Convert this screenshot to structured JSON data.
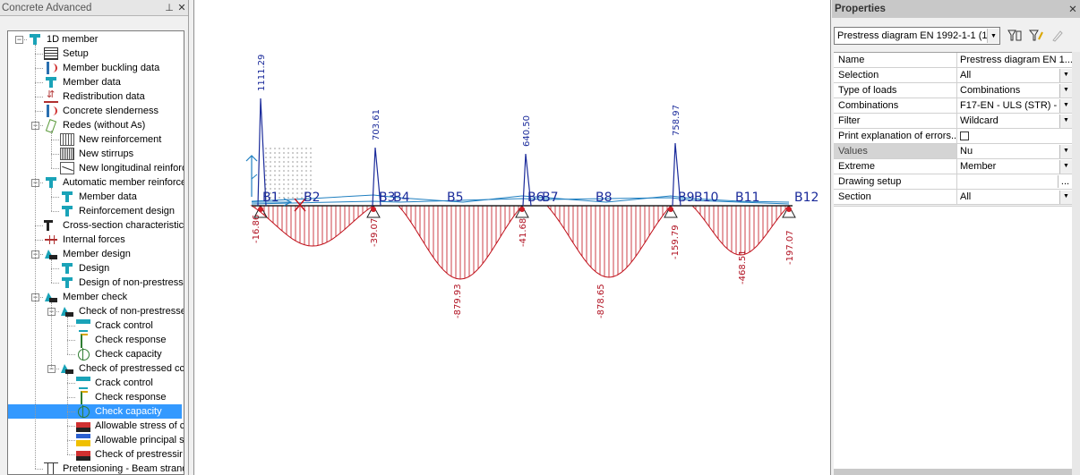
{
  "left_panel": {
    "title": "Concrete Advanced",
    "pin_icon": "pin-icon",
    "close_icon": "close-icon",
    "tree": [
      {
        "label": "1D member",
        "icon": "tee-icon",
        "level": 0,
        "expanded": true,
        "selected": false
      },
      {
        "label": "Setup",
        "icon": "setup-icon",
        "level": 1,
        "selected": false
      },
      {
        "label": "Member buckling data",
        "icon": "buckling-icon",
        "level": 1,
        "selected": false
      },
      {
        "label": "Member data",
        "icon": "tee-icon",
        "level": 1,
        "selected": false
      },
      {
        "label": "Redistribution data",
        "icon": "redistribution-icon",
        "level": 1,
        "selected": false
      },
      {
        "label": "Concrete slenderness",
        "icon": "buckling-icon",
        "level": 1,
        "selected": false
      },
      {
        "label": "Redes (without As)",
        "icon": "pencil-icon",
        "level": 1,
        "expanded": true,
        "selected": false
      },
      {
        "label": "New reinforcement",
        "icon": "reinforcement-icon",
        "level": 2,
        "selected": false
      },
      {
        "label": "New stirrups",
        "icon": "stirrups-icon",
        "level": 2,
        "selected": false
      },
      {
        "label": "New longitudinal reinforc",
        "icon": "longitudinal-icon",
        "level": 2,
        "selected": false
      },
      {
        "label": "Automatic member reinforcer",
        "icon": "tee-icon",
        "level": 1,
        "expanded": true,
        "selected": false
      },
      {
        "label": "Member data",
        "icon": "tee-icon",
        "level": 2,
        "selected": false
      },
      {
        "label": "Reinforcement design",
        "icon": "tee-icon",
        "level": 2,
        "selected": false
      },
      {
        "label": "Cross-section characteristics",
        "icon": "cross-section-icon",
        "level": 1,
        "selected": false
      },
      {
        "label": "Internal forces",
        "icon": "internal-forces-icon",
        "level": 1,
        "selected": false
      },
      {
        "label": "Member design",
        "icon": "member-icon",
        "level": 1,
        "expanded": true,
        "selected": false
      },
      {
        "label": "Design",
        "icon": "tee-icon",
        "level": 2,
        "selected": false
      },
      {
        "label": "Design of non-prestresse",
        "icon": "tee-icon",
        "level": 2,
        "selected": false
      },
      {
        "label": "Member check",
        "icon": "member-icon",
        "level": 1,
        "expanded": true,
        "selected": false
      },
      {
        "label": "Check of non-prestresse",
        "icon": "member-icon",
        "level": 2,
        "expanded": true,
        "selected": false
      },
      {
        "label": "Crack control",
        "icon": "crack-icon",
        "level": 3,
        "selected": false
      },
      {
        "label": "Check response",
        "icon": "response-icon",
        "level": 3,
        "selected": false
      },
      {
        "label": "Check capacity",
        "icon": "capacity-icon",
        "level": 3,
        "selected": false
      },
      {
        "label": "Check of prestressed cc",
        "icon": "member-icon",
        "level": 2,
        "expanded": true,
        "selected": false
      },
      {
        "label": "Crack control",
        "icon": "crack-icon",
        "level": 3,
        "selected": false
      },
      {
        "label": "Check response",
        "icon": "response-icon",
        "level": 3,
        "selected": false
      },
      {
        "label": "Check capacity",
        "icon": "capacity-icon",
        "level": 3,
        "selected": true
      },
      {
        "label": "Allowable stress of c",
        "icon": "allowable-stress-icon",
        "level": 3,
        "selected": false
      },
      {
        "label": "Allowable principal s",
        "icon": "principal-stress-icon",
        "level": 3,
        "selected": false
      },
      {
        "label": "Check of prestressir",
        "icon": "prestressing-check-icon",
        "level": 3,
        "selected": false
      },
      {
        "label": "Pretensioning - Beam strand",
        "icon": "strand-icon",
        "level": 1,
        "selected": false
      }
    ]
  },
  "diagram": {
    "beam_labels": [
      "B1",
      "B2",
      "B3",
      "B4",
      "B5",
      "B6",
      "B7",
      "B8",
      "B9",
      "B10",
      "B11",
      "B12"
    ],
    "peak_labels": [
      "1111.29",
      "703.61",
      "640.50",
      "758.97"
    ],
    "negative_labels": [
      "-16.86",
      "-39.07",
      "-879.93",
      "-41.68",
      "-878.65",
      "-159.79",
      "-468.51",
      "-197.07"
    ],
    "positive_color": "#1a2a9a",
    "negative_color": "#c0101a",
    "beam_color": "#1f7fc0"
  },
  "properties": {
    "title": "Properties",
    "close_icon": "close-icon",
    "selector_value": "Prestress diagram EN 1992-1-1 (1)",
    "toolbar_icons": [
      "filter-select-icon",
      "filter-edit-icon",
      "pencil-icon"
    ],
    "rows": [
      {
        "key": "Name",
        "value": "Prestress diagram EN 1...",
        "control": "text"
      },
      {
        "key": "Selection",
        "value": "All",
        "control": "dropdown"
      },
      {
        "key": "Type of loads",
        "value": "Combinations",
        "control": "dropdown"
      },
      {
        "key": "Combinations",
        "value": "F17-EN - ULS (STR) -",
        "control": "dropdown"
      },
      {
        "key": "Filter",
        "value": "Wildcard",
        "control": "dropdown"
      },
      {
        "key": "Print explanation of errors...",
        "value": "",
        "control": "checkbox"
      },
      {
        "key": "Values",
        "value": "Nu",
        "control": "dropdown",
        "highlight": true
      },
      {
        "key": "Extreme",
        "value": "Member",
        "control": "dropdown"
      },
      {
        "key": "Drawing setup",
        "value": "",
        "control": "ellipsis"
      },
      {
        "key": "Section",
        "value": "All",
        "control": "dropdown"
      }
    ]
  }
}
